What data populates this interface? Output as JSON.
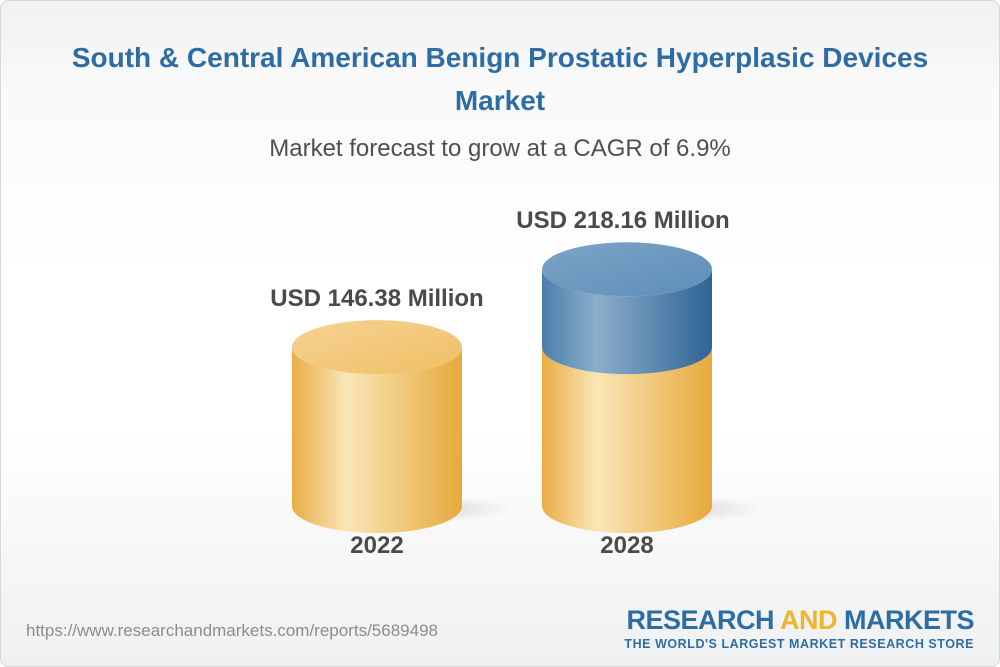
{
  "page": {
    "title_line1": "South & Central American Benign Prostatic Hyperplasic Devices",
    "title_line2": "Market",
    "subtitle": "Market forecast to grow at a CAGR of 6.9%"
  },
  "chart_data": {
    "type": "bar",
    "subtype": "3d-cylinder",
    "title": "South & Central American Benign Prostatic Hyperplasic Devices Market",
    "subtitle": "Market forecast to grow at a CAGR of 6.9%",
    "cagr_percent": 6.9,
    "unit": "USD Million",
    "categories": [
      "2022",
      "2028"
    ],
    "values": [
      146.38,
      218.16
    ],
    "value_labels": [
      "USD 146.38 Million",
      "USD 218.16 Million"
    ],
    "legend": false,
    "grid": false,
    "colors": {
      "base_segment": "#EFB64A",
      "growth_segment": "#4A7DAB",
      "label_text": "#4A4A4A",
      "title_text": "#2D6DA4"
    }
  },
  "footer": {
    "url": "https://www.researchandmarkets.com/reports/5689498",
    "logo": {
      "part1": "RESEARCH",
      "part2": "AND",
      "part3": "MARKETS",
      "tagline": "THE WORLD'S LARGEST MARKET RESEARCH STORE",
      "blue": "#2E6DA4",
      "gold": "#F0B42E"
    }
  }
}
